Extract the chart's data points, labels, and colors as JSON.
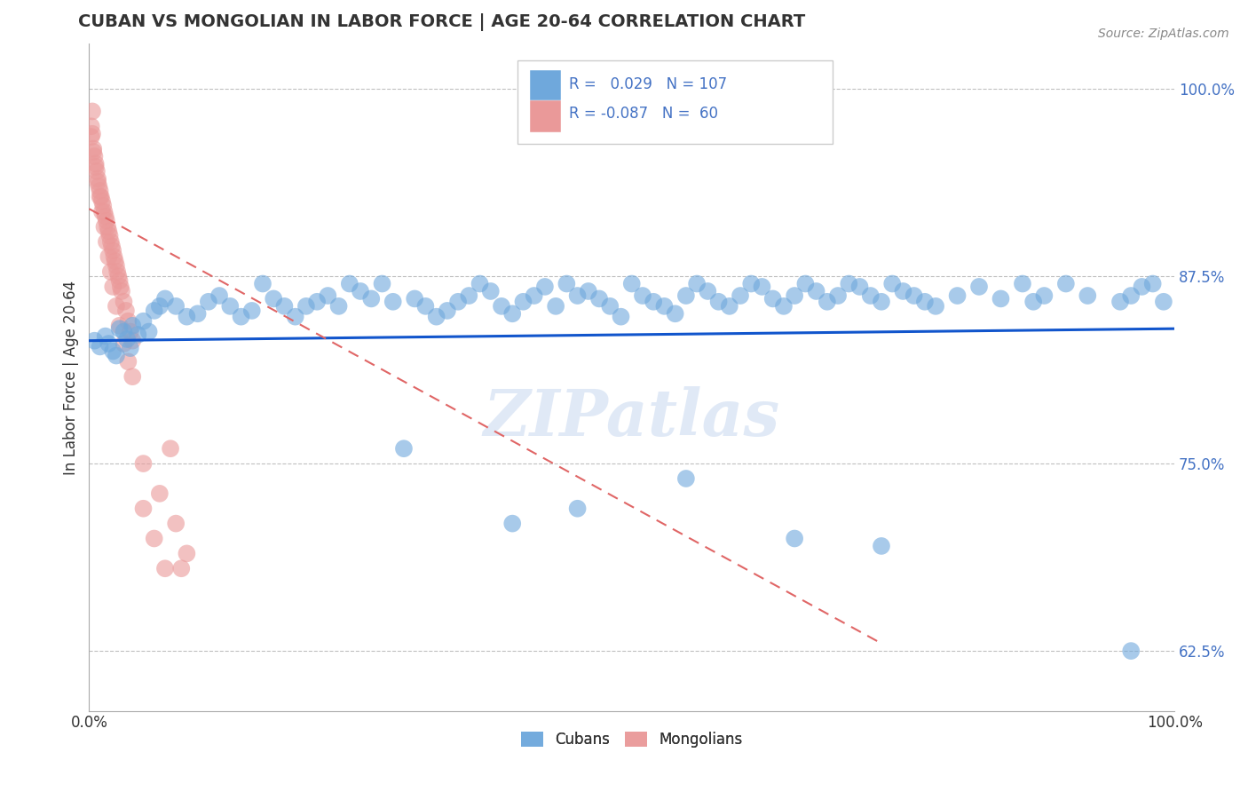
{
  "title": "CUBAN VS MONGOLIAN IN LABOR FORCE | AGE 20-64 CORRELATION CHART",
  "source_text": "Source: ZipAtlas.com",
  "ylabel": "In Labor Force | Age 20-64",
  "xlim": [
    0.0,
    1.0
  ],
  "ylim": [
    0.585,
    1.03
  ],
  "x_ticks": [
    0.0,
    0.1,
    0.2,
    0.3,
    0.4,
    0.5,
    0.6,
    0.7,
    0.8,
    0.9,
    1.0
  ],
  "x_tick_labels": [
    "0.0%",
    "",
    "",
    "",
    "",
    "",
    "",
    "",
    "",
    "",
    "100.0%"
  ],
  "y_ticks": [
    0.625,
    0.75,
    0.875,
    1.0
  ],
  "y_tick_labels": [
    "62.5%",
    "75.0%",
    "87.5%",
    "100.0%"
  ],
  "blue_color": "#6fa8dc",
  "pink_color": "#ea9999",
  "blue_line_color": "#1155cc",
  "pink_line_color": "#e06666",
  "watermark_text": "ZIPatlas",
  "background_color": "#ffffff",
  "grid_color": "#c0c0c0",
  "cubans_x": [
    0.005,
    0.01,
    0.015,
    0.018,
    0.022,
    0.025,
    0.028,
    0.032,
    0.035,
    0.038,
    0.04,
    0.045,
    0.05,
    0.055,
    0.06,
    0.065,
    0.07,
    0.08,
    0.09,
    0.1,
    0.11,
    0.12,
    0.13,
    0.14,
    0.15,
    0.16,
    0.17,
    0.18,
    0.19,
    0.2,
    0.21,
    0.22,
    0.23,
    0.24,
    0.25,
    0.26,
    0.27,
    0.28,
    0.3,
    0.31,
    0.32,
    0.33,
    0.34,
    0.35,
    0.36,
    0.37,
    0.38,
    0.39,
    0.4,
    0.41,
    0.42,
    0.43,
    0.44,
    0.45,
    0.46,
    0.47,
    0.48,
    0.49,
    0.5,
    0.51,
    0.52,
    0.53,
    0.54,
    0.55,
    0.56,
    0.57,
    0.58,
    0.59,
    0.6,
    0.61,
    0.62,
    0.63,
    0.64,
    0.65,
    0.66,
    0.67,
    0.68,
    0.69,
    0.7,
    0.71,
    0.72,
    0.73,
    0.74,
    0.75,
    0.76,
    0.77,
    0.78,
    0.8,
    0.82,
    0.84,
    0.86,
    0.87,
    0.88,
    0.9,
    0.92,
    0.95,
    0.96,
    0.97,
    0.98,
    0.99,
    0.45,
    0.55,
    0.39,
    0.65,
    0.29,
    0.96,
    0.73
  ],
  "cubans_y": [
    0.832,
    0.828,
    0.835,
    0.83,
    0.825,
    0.822,
    0.84,
    0.838,
    0.833,
    0.827,
    0.842,
    0.836,
    0.845,
    0.838,
    0.852,
    0.855,
    0.86,
    0.855,
    0.848,
    0.85,
    0.858,
    0.862,
    0.855,
    0.848,
    0.852,
    0.87,
    0.86,
    0.855,
    0.848,
    0.855,
    0.858,
    0.862,
    0.855,
    0.87,
    0.865,
    0.86,
    0.87,
    0.858,
    0.86,
    0.855,
    0.848,
    0.852,
    0.858,
    0.862,
    0.87,
    0.865,
    0.855,
    0.85,
    0.858,
    0.862,
    0.868,
    0.855,
    0.87,
    0.862,
    0.865,
    0.86,
    0.855,
    0.848,
    0.87,
    0.862,
    0.858,
    0.855,
    0.85,
    0.862,
    0.87,
    0.865,
    0.858,
    0.855,
    0.862,
    0.87,
    0.868,
    0.86,
    0.855,
    0.862,
    0.87,
    0.865,
    0.858,
    0.862,
    0.87,
    0.868,
    0.862,
    0.858,
    0.87,
    0.865,
    0.862,
    0.858,
    0.855,
    0.862,
    0.868,
    0.86,
    0.87,
    0.858,
    0.862,
    0.87,
    0.862,
    0.858,
    0.862,
    0.868,
    0.87,
    0.858,
    0.72,
    0.74,
    0.71,
    0.7,
    0.76,
    0.625,
    0.695
  ],
  "mongolians_x": [
    0.002,
    0.003,
    0.004,
    0.005,
    0.006,
    0.007,
    0.008,
    0.009,
    0.01,
    0.011,
    0.012,
    0.013,
    0.014,
    0.015,
    0.016,
    0.017,
    0.018,
    0.019,
    0.02,
    0.021,
    0.022,
    0.023,
    0.024,
    0.025,
    0.026,
    0.027,
    0.028,
    0.029,
    0.03,
    0.032,
    0.034,
    0.036,
    0.038,
    0.04,
    0.002,
    0.004,
    0.006,
    0.008,
    0.01,
    0.012,
    0.014,
    0.016,
    0.018,
    0.02,
    0.022,
    0.025,
    0.028,
    0.032,
    0.036,
    0.04,
    0.003,
    0.05,
    0.06,
    0.07,
    0.08,
    0.09,
    0.05,
    0.065,
    0.075,
    0.085
  ],
  "mongolians_y": [
    0.975,
    0.97,
    0.96,
    0.955,
    0.95,
    0.945,
    0.94,
    0.935,
    0.932,
    0.928,
    0.925,
    0.922,
    0.918,
    0.915,
    0.912,
    0.908,
    0.905,
    0.902,
    0.898,
    0.895,
    0.892,
    0.888,
    0.885,
    0.882,
    0.878,
    0.875,
    0.872,
    0.868,
    0.865,
    0.858,
    0.852,
    0.845,
    0.838,
    0.832,
    0.968,
    0.958,
    0.948,
    0.938,
    0.928,
    0.918,
    0.908,
    0.898,
    0.888,
    0.878,
    0.868,
    0.855,
    0.842,
    0.83,
    0.818,
    0.808,
    0.985,
    0.72,
    0.7,
    0.68,
    0.71,
    0.69,
    0.75,
    0.73,
    0.76,
    0.68
  ],
  "blue_trend_x": [
    0.0,
    1.0
  ],
  "blue_trend_y": [
    0.832,
    0.84
  ],
  "pink_trend_x": [
    0.0,
    0.73
  ],
  "pink_trend_y": [
    0.92,
    0.63
  ]
}
